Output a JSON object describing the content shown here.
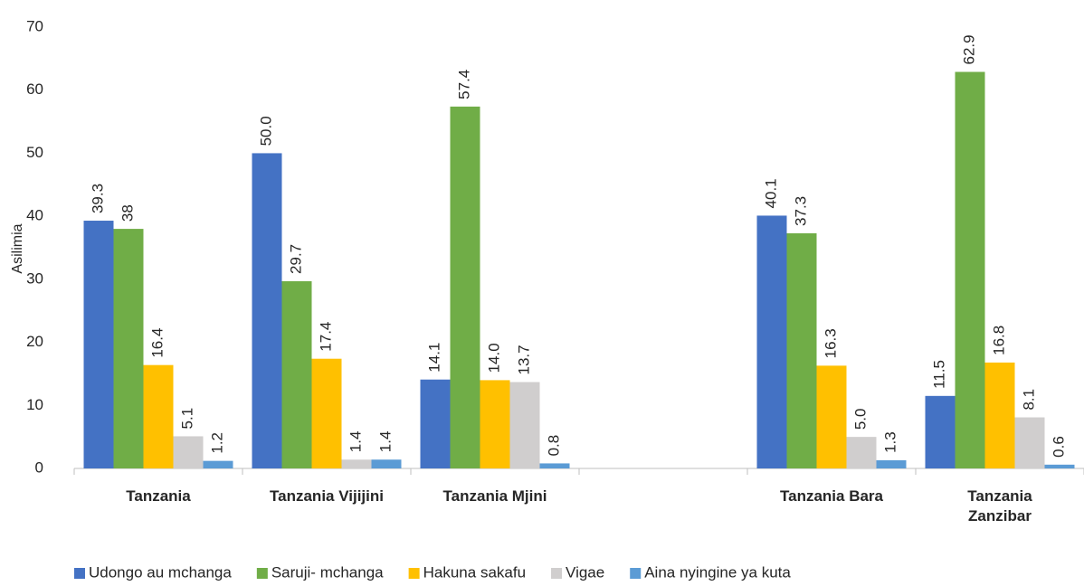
{
  "chart_data": {
    "type": "bar",
    "y_label": "Asilimia",
    "categories": [
      "Tanzania",
      "Tanzania Vijijini",
      "Tanzania Mjini",
      null,
      "Tanzania Bara",
      "Tanzania Zanzibar"
    ],
    "series": [
      {
        "name": "Udongo au mchanga",
        "color": "#4472c4",
        "values": [
          39.3,
          50.0,
          14.1,
          null,
          40.1,
          11.5
        ],
        "value_labels": [
          "39.3",
          "50.0",
          "14.1",
          null,
          "40.1",
          "11.5"
        ]
      },
      {
        "name": "Saruji- mchanga",
        "color": "#70ad47",
        "values": [
          38,
          29.7,
          57.4,
          null,
          37.3,
          62.9
        ],
        "value_labels": [
          "38",
          "29.7",
          "57.4",
          null,
          "37.3",
          "62.9"
        ]
      },
      {
        "name": "Hakuna sakafu",
        "color": "#ffc000",
        "values": [
          16.4,
          17.4,
          14.0,
          null,
          16.3,
          16.8
        ],
        "value_labels": [
          "16.4",
          "17.4",
          "14.0",
          null,
          "16.3",
          "16.8"
        ]
      },
      {
        "name": "Vigae",
        "color": "#d0cece",
        "values": [
          5.1,
          1.4,
          13.7,
          null,
          5.0,
          8.1
        ],
        "value_labels": [
          "5.1",
          "1.4",
          "13.7",
          null,
          "5.0",
          "8.1"
        ]
      },
      {
        "name": "Aina nyingine ya kuta",
        "color": "#5b9bd5",
        "values": [
          1.2,
          1.4,
          0.8,
          null,
          1.3,
          0.6
        ],
        "value_labels": [
          "1.2",
          "1.4",
          "0.8",
          null,
          "1.3",
          "0.6"
        ]
      }
    ],
    "ylim": [
      0,
      70
    ],
    "yticks": [
      0,
      10,
      20,
      30,
      40,
      50,
      60,
      70
    ],
    "grid": false,
    "legend": "bottom"
  }
}
